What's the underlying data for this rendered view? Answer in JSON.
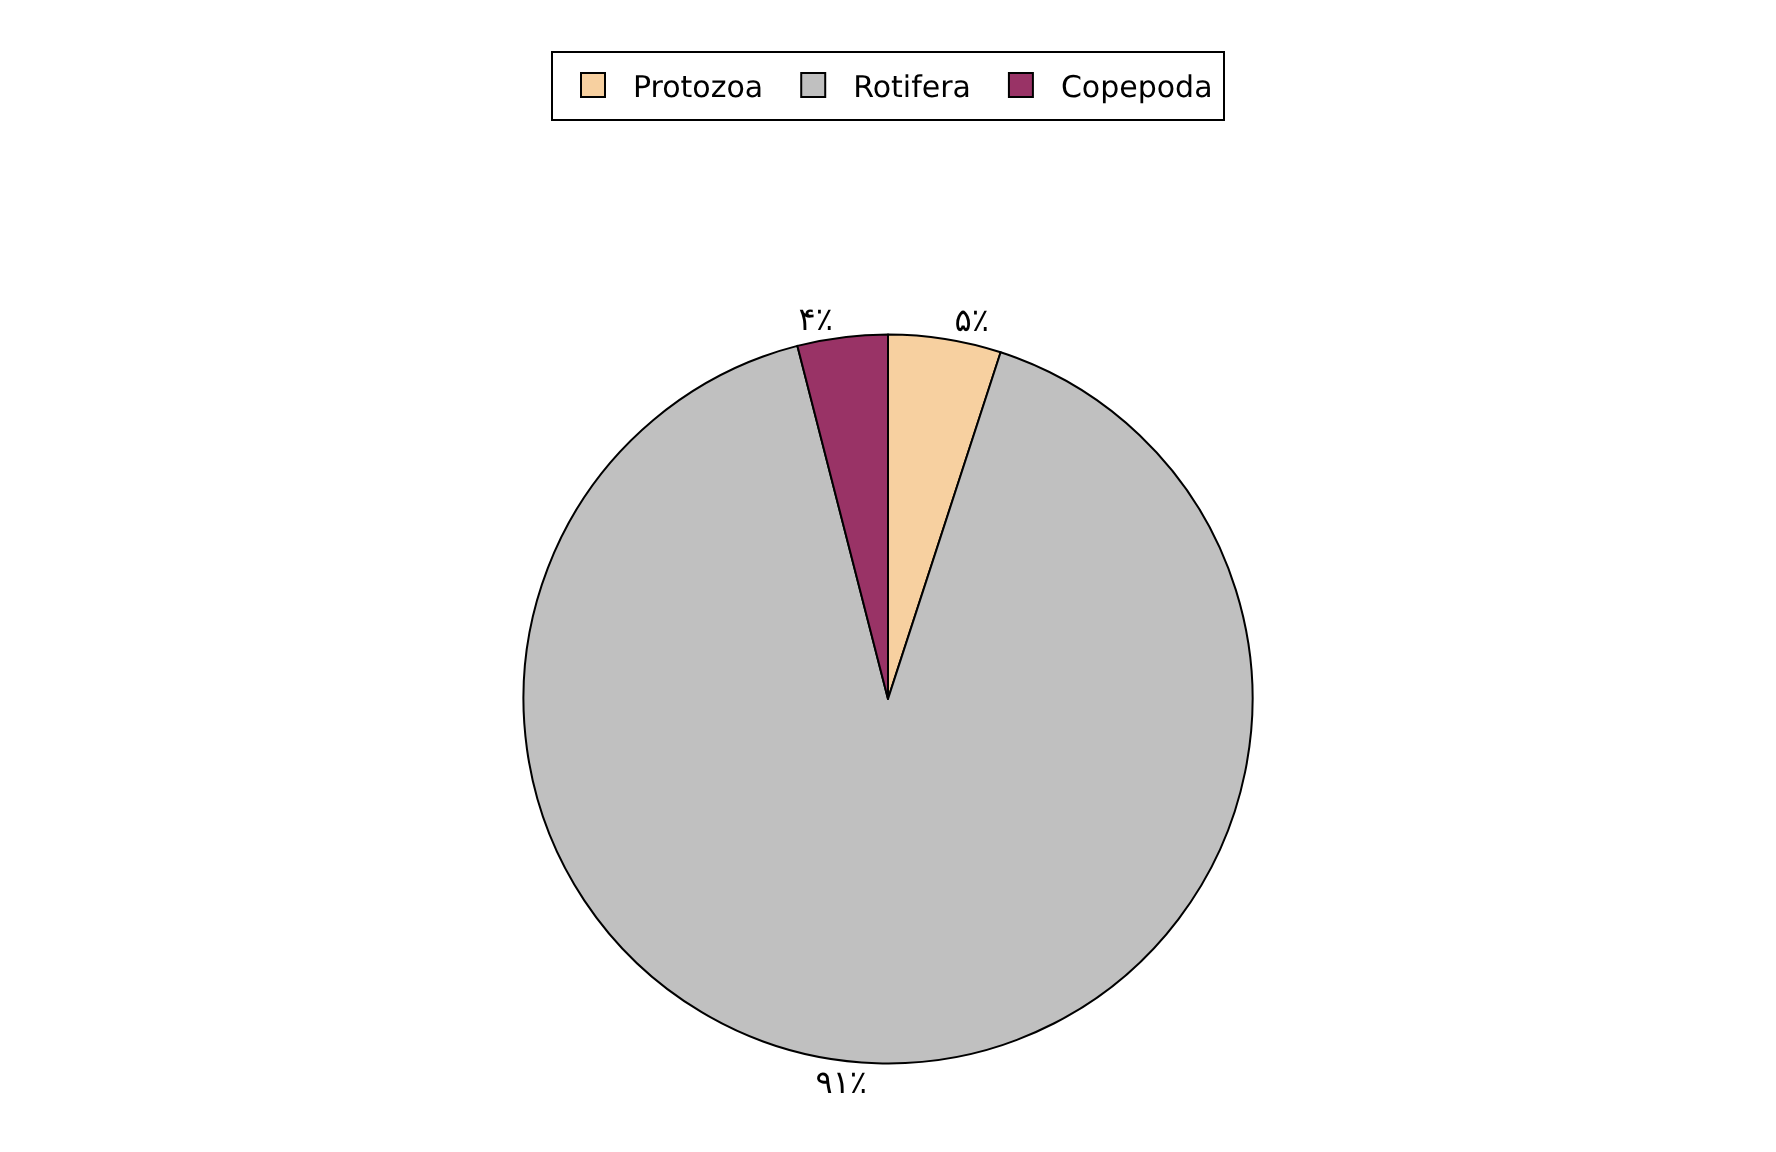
{
  "chart_data": {
    "type": "pie",
    "categories": [
      "Protozoa",
      "Rotifera",
      "Copepoda"
    ],
    "values": [
      5,
      91,
      4
    ],
    "value_labels": [
      "۵٪",
      "۹۱٪",
      "۴٪"
    ],
    "colors": [
      "#f7d0a0",
      "#c0c0c0",
      "#993366"
    ],
    "legend": "top"
  }
}
